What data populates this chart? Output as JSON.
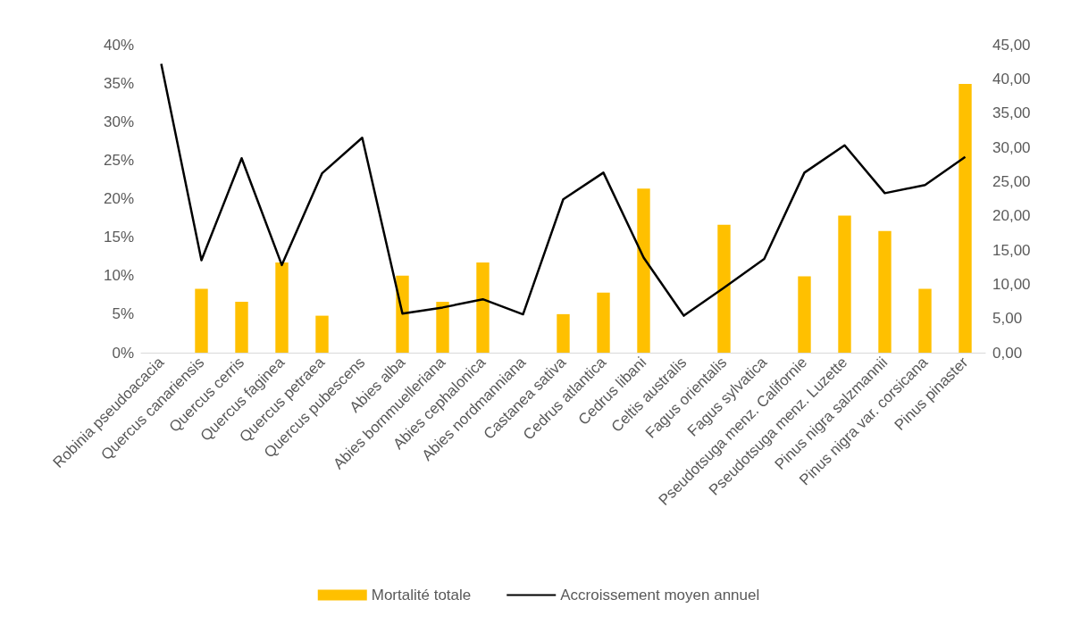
{
  "chart_data": {
    "type": "bar",
    "categories": [
      "Robinia pseudoacacia",
      "Quercus canariensis",
      "Quercus cerris",
      "Quercus faginea",
      "Quercus petraea",
      "Quercus pubescens",
      "Abies alba",
      "Abies bornmuelleriana",
      "Abies cephalonica",
      "Abies nordmanniana",
      "Castanea sativa",
      "Cedrus atlantica",
      "Cedrus libani",
      "Celtis australis",
      "Fagus orientalis",
      "Fagus sylvatica",
      "Pseudotsuga menz. Californie",
      "Pseudotsuga menz. Luzette",
      "Pinus nigra salzmannii",
      "Pinus nigra var. corsicana",
      "Pinus pinaster"
    ],
    "series": [
      {
        "name": "Mortalité totale",
        "axis": "y",
        "color": "#ffc000",
        "values": [
          0,
          8.3,
          6.6,
          11.7,
          4.8,
          0,
          10.0,
          6.6,
          11.7,
          0,
          5.0,
          7.8,
          21.3,
          0,
          16.6,
          0,
          9.9,
          17.8,
          15.8,
          8.3,
          34.9
        ]
      },
      {
        "name": "Accroissement moyen annuel",
        "type": "line",
        "axis": "y2",
        "color": "#000000",
        "values": [
          42.2,
          13.5,
          28.4,
          12.8,
          26.2,
          31.4,
          5.7,
          6.6,
          7.8,
          5.6,
          22.4,
          26.3,
          13.9,
          5.4,
          9.5,
          13.7,
          26.3,
          30.3,
          23.3,
          24.5,
          28.6
        ]
      }
    ],
    "ylim": [
      0,
      40
    ],
    "yticks": [
      {
        "value": 0,
        "label": "0%"
      },
      {
        "value": 5,
        "label": "5%"
      },
      {
        "value": 10,
        "label": "10%"
      },
      {
        "value": 15,
        "label": "15%"
      },
      {
        "value": 20,
        "label": "20%"
      },
      {
        "value": 25,
        "label": "25%"
      },
      {
        "value": 30,
        "label": "30%"
      },
      {
        "value": 35,
        "label": "35%"
      },
      {
        "value": 40,
        "label": "40%"
      }
    ],
    "y2lim": [
      0,
      45
    ],
    "y2ticks": [
      {
        "value": 0,
        "label": "0,00"
      },
      {
        "value": 5,
        "label": "5,00"
      },
      {
        "value": 10,
        "label": "10,00"
      },
      {
        "value": 15,
        "label": "15,00"
      },
      {
        "value": 20,
        "label": "20,00"
      },
      {
        "value": 25,
        "label": "25,00"
      },
      {
        "value": 30,
        "label": "30,00"
      },
      {
        "value": 35,
        "label": "35,00"
      },
      {
        "value": 40,
        "label": "40,00"
      },
      {
        "value": 45,
        "label": "45,00"
      }
    ],
    "grid": false,
    "legend": "bottom",
    "marker": "none",
    "line_style": "solid"
  }
}
